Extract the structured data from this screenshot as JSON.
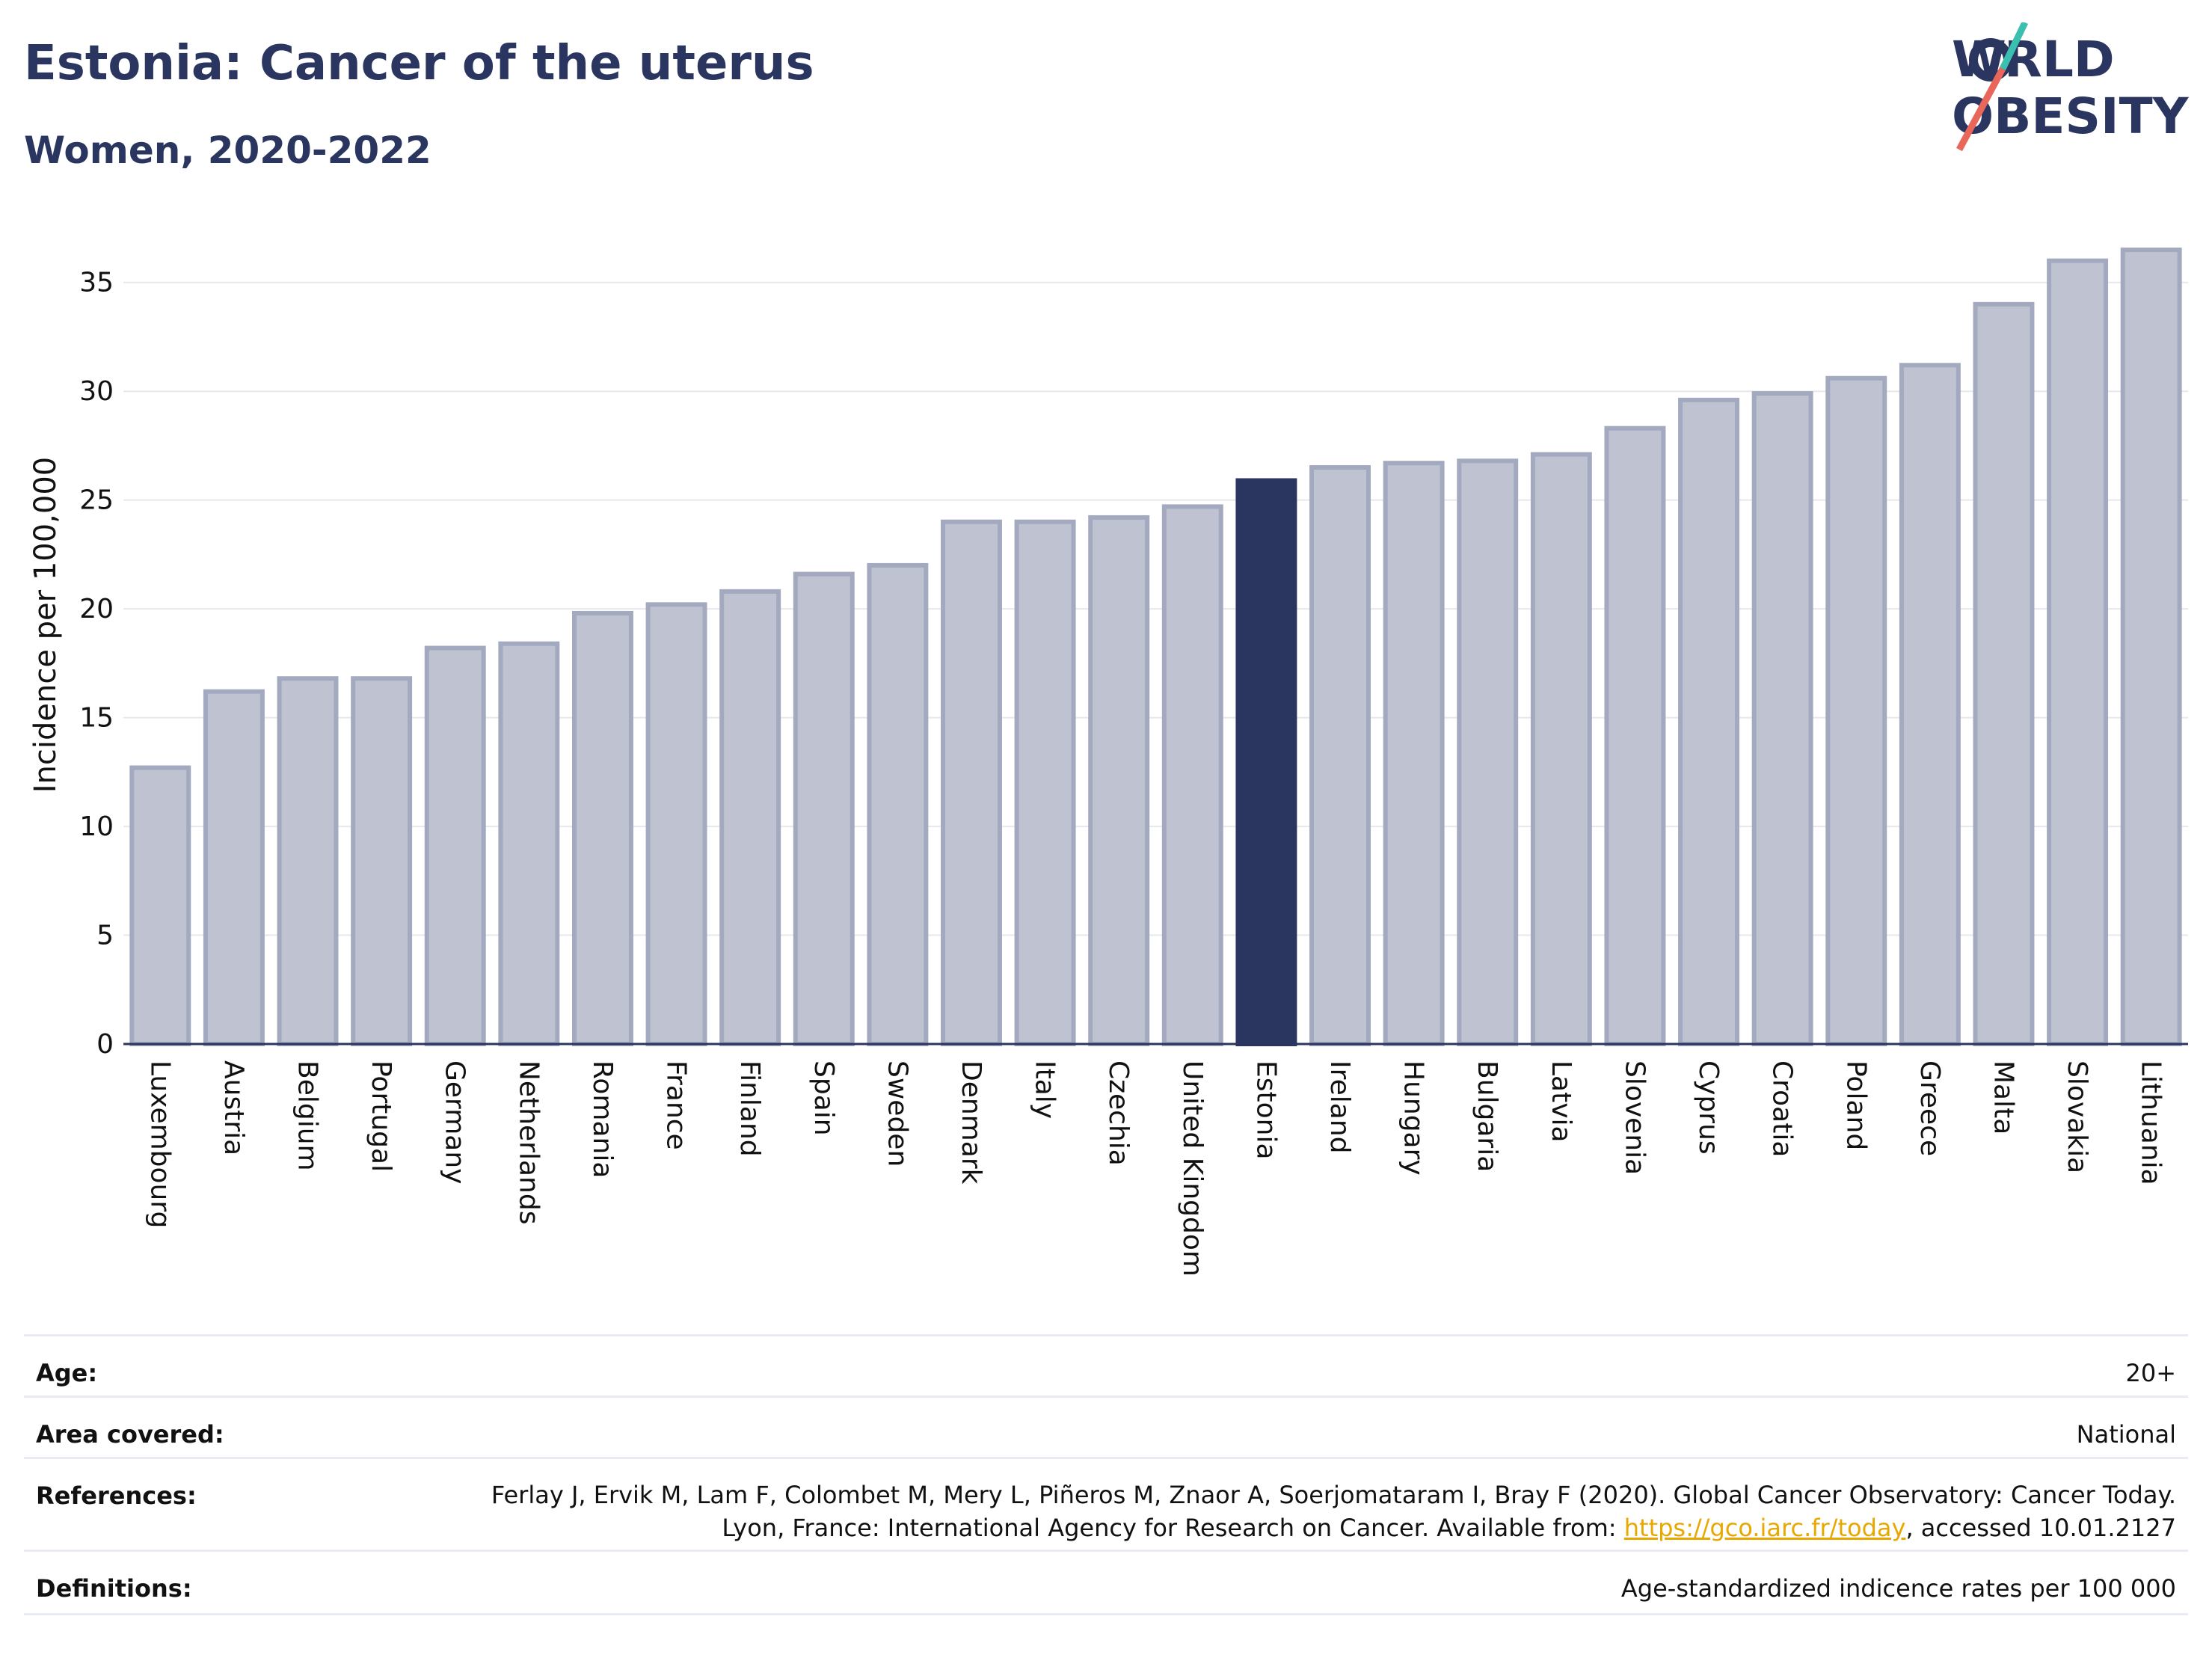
{
  "header": {
    "title": "Estonia: Cancer of the uterus",
    "subtitle": "Women, 2020-2022"
  },
  "logo": {
    "line1": "WORLD",
    "line2": "OBESITY"
  },
  "chart_data": {
    "type": "bar",
    "title": "Estonia: Cancer of the uterus",
    "subtitle": "Women, 2020-2022",
    "ylabel": "Incidence per 100,000",
    "xlabel": "",
    "ylim": [
      0,
      37.5
    ],
    "yticks": [
      0,
      5,
      10,
      15,
      20,
      25,
      30,
      35
    ],
    "grid": true,
    "highlight": "Estonia",
    "colors": {
      "default_fill": "#bfc3d1",
      "default_stroke": "#a3a9bf",
      "highlight": "#2a3560"
    },
    "categories": [
      "Luxembourg",
      "Austria",
      "Belgium",
      "Portugal",
      "Germany",
      "Netherlands",
      "Romania",
      "France",
      "Finland",
      "Spain",
      "Sweden",
      "Denmark",
      "Italy",
      "Czechia",
      "United Kingdom",
      "Estonia",
      "Ireland",
      "Hungary",
      "Bulgaria",
      "Latvia",
      "Slovenia",
      "Cyprus",
      "Croatia",
      "Poland",
      "Greece",
      "Malta",
      "Slovakia",
      "Lithuania"
    ],
    "values": [
      12.7,
      16.2,
      16.8,
      16.8,
      18.2,
      18.4,
      19.8,
      20.2,
      20.8,
      21.6,
      22.0,
      24.0,
      24.0,
      24.2,
      24.7,
      25.9,
      26.5,
      26.7,
      26.8,
      27.1,
      28.3,
      29.6,
      29.9,
      30.6,
      31.2,
      34.0,
      36.0,
      36.5
    ]
  },
  "meta": [
    {
      "key": "Age:",
      "value": "20+"
    },
    {
      "key": "Area covered:",
      "value": "National"
    },
    {
      "key": "References:",
      "value_before": "Ferlay J, Ervik M, Lam F, Colombet M, Mery L, Piñeros M, Znaor A, Soerjomataram I, Bray F (2020). Global Cancer Observatory: Cancer Today. Lyon, France: International Agency for Research on Cancer. Available from: ",
      "link": "https://gco.iarc.fr/today",
      "value_after": ", accessed 10.01.2127"
    },
    {
      "key": "Definitions:",
      "value": "Age-standardized indicence rates per 100 000"
    }
  ]
}
